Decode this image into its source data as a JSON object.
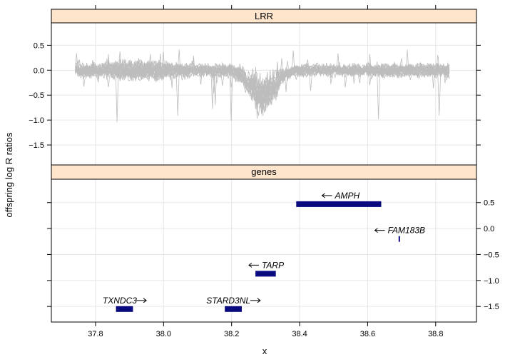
{
  "chart_data": {
    "type": "line",
    "xlabel": "x",
    "ylabel": "offspring log R ratios",
    "x_ticks": [
      "37.8",
      "38.0",
      "38.2",
      "38.4",
      "38.6",
      "38.8"
    ],
    "xlim": [
      37.67,
      38.92
    ],
    "panels": [
      {
        "strip": "LRR",
        "ylim": [
          -1.9,
          0.95
        ],
        "y_ticks": [
          "0.5",
          "0.0",
          "−0.5",
          "−1.0",
          "−1.5"
        ],
        "y_tick_values": [
          0.5,
          0.0,
          -0.5,
          -1.0,
          -1.5
        ],
        "tick_side": "left",
        "series_color": "#bdbdbd",
        "series_count": 22,
        "x_range": [
          37.74,
          38.84
        ],
        "noise_profile": [
          {
            "x": 37.74,
            "amp": 0.22
          },
          {
            "x": 37.82,
            "amp": 0.25
          },
          {
            "x": 37.87,
            "amp": 0.32
          },
          {
            "x": 37.95,
            "amp": 0.3
          },
          {
            "x": 38.05,
            "amp": 0.22
          },
          {
            "x": 38.1,
            "amp": 0.2
          },
          {
            "x": 38.2,
            "amp": 0.22
          },
          {
            "x": 38.26,
            "amp": 0.3
          },
          {
            "x": 38.28,
            "amp": 0.45
          },
          {
            "x": 38.33,
            "amp": 0.35
          },
          {
            "x": 38.36,
            "amp": 0.15
          },
          {
            "x": 38.4,
            "amp": 0.18
          },
          {
            "x": 38.55,
            "amp": 0.18
          },
          {
            "x": 38.7,
            "amp": 0.2
          },
          {
            "x": 38.84,
            "amp": 0.22
          }
        ],
        "dip": {
          "center": 38.29,
          "width": 0.05,
          "depth": -0.55
        }
      },
      {
        "strip": "genes",
        "ylim": [
          -1.8,
          0.95
        ],
        "y_ticks": [
          "0.5",
          "0.0",
          "−0.5",
          "−1.0",
          "−1.5"
        ],
        "y_tick_values": [
          0.5,
          0.0,
          -0.5,
          -1.0,
          -1.5
        ],
        "tick_side": "right",
        "bar_color": "#0a0a80",
        "genes": [
          {
            "name": "AMPH",
            "start": 38.39,
            "end": 38.64,
            "y": 0.47,
            "strand": "-"
          },
          {
            "name": "FAM183B",
            "start": 38.691,
            "end": 38.695,
            "y": -0.2,
            "strand": "-"
          },
          {
            "name": "TARP",
            "start": 38.27,
            "end": 38.33,
            "y": -0.87,
            "strand": "-"
          },
          {
            "name": "TXNDC3",
            "start": 37.86,
            "end": 37.91,
            "y": -1.55,
            "strand": "+"
          },
          {
            "name": "STARD3NL",
            "start": 38.18,
            "end": 38.23,
            "y": -1.55,
            "strand": "+"
          }
        ]
      }
    ]
  }
}
